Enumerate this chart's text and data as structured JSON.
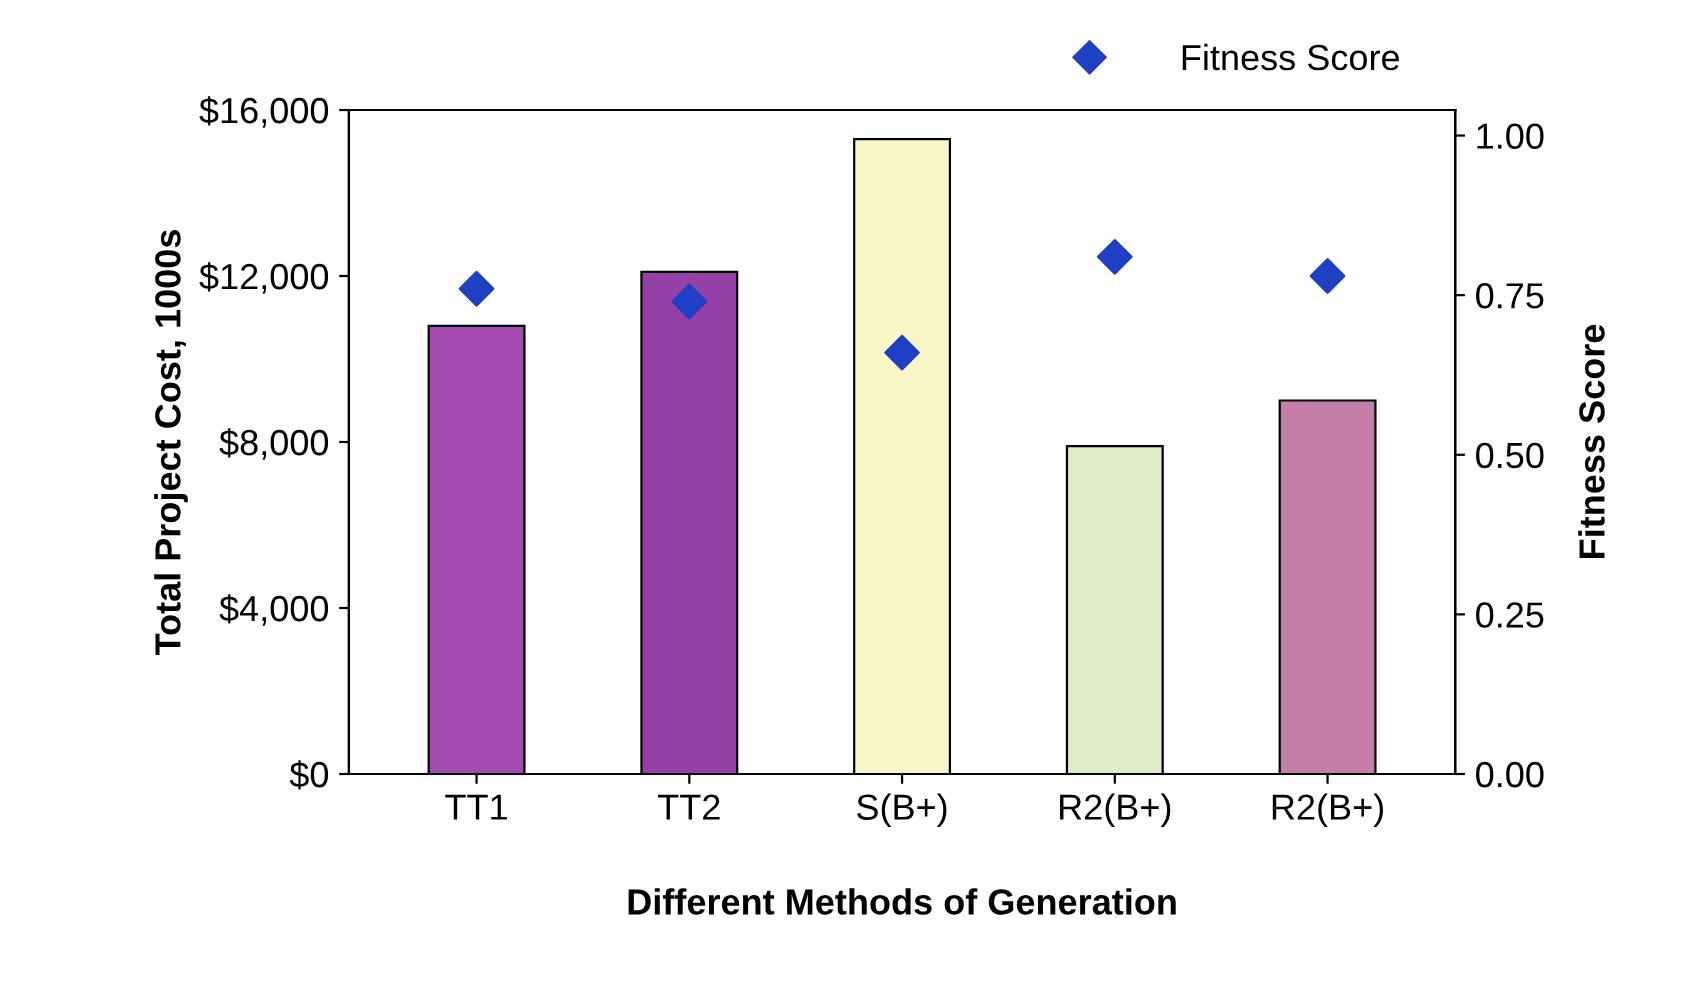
{
  "chart_data": {
    "type": "bar",
    "xlabel": "Different Methods of Generation",
    "ylabel": "Total Project Cost, 1000s",
    "y2label": "Fitness Score",
    "categories": [
      "TT1",
      "TT2",
      "S(B+)",
      "R2(B+)",
      "R2(B+)"
    ],
    "series": [
      {
        "colors": [
          "#a24cb2",
          "#9440a6",
          "#f8f6c4",
          "#dcecc6",
          "#c47fa8"
        ],
        "values": [
          10800,
          12100,
          15300,
          7900,
          9000
        ]
      },
      {
        "type": "scatter",
        "name": "Fitness Score",
        "axis": "y2",
        "color": "#1f3fc4",
        "marker": "diamond",
        "values": [
          0.76,
          0.74,
          0.66,
          0.81,
          0.78
        ]
      }
    ],
    "ylim": [
      0,
      16000
    ],
    "yticks": [
      {
        "value": 0,
        "label": "$0"
      },
      {
        "value": 4000,
        "label": "$4,000"
      },
      {
        "value": 8000,
        "label": "$8,000"
      },
      {
        "value": 12000,
        "label": "$12,000"
      },
      {
        "value": 16000,
        "label": "$16,000"
      }
    ],
    "y2lim": [
      0,
      1.04
    ],
    "y2ticks": [
      {
        "value": 0,
        "label": "0.00"
      },
      {
        "value": 0.25,
        "label": "0.25"
      },
      {
        "value": 0.5,
        "label": "0.50"
      },
      {
        "value": 0.75,
        "label": "0.75"
      },
      {
        "value": 1,
        "label": "1.00"
      }
    ],
    "grid": false,
    "legend": "top right"
  }
}
